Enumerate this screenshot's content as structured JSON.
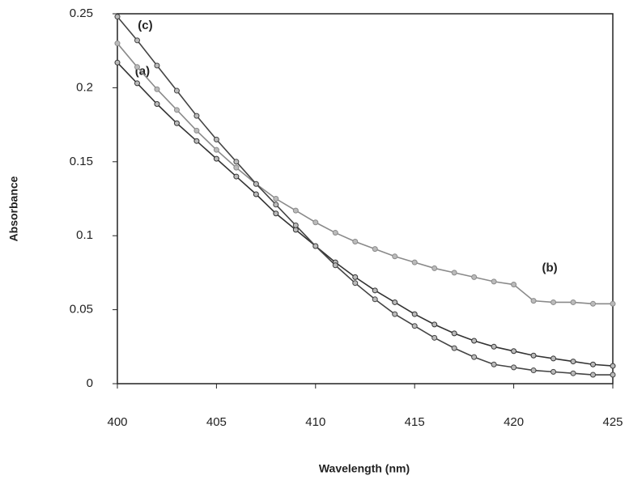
{
  "chart_data": {
    "type": "line",
    "x_label": "Wavelength (nm)",
    "y_label": "Absorbance",
    "x": [
      400,
      401,
      402,
      403,
      404,
      405,
      406,
      407,
      408,
      409,
      410,
      411,
      412,
      413,
      414,
      415,
      416,
      417,
      418,
      419,
      420,
      421,
      422,
      423,
      424,
      425
    ],
    "series": [
      {
        "name": "(a)",
        "color": "#333333",
        "values": [
          0.217,
          0.203,
          0.189,
          0.176,
          0.164,
          0.152,
          0.14,
          0.128,
          0.115,
          0.104,
          0.093,
          0.082,
          0.072,
          0.063,
          0.055,
          0.047,
          0.04,
          0.034,
          0.029,
          0.025,
          0.022,
          0.019,
          0.017,
          0.015,
          0.013,
          0.012
        ]
      },
      {
        "name": "(b)",
        "color": "#8a8a8a",
        "values": [
          0.23,
          0.214,
          0.199,
          0.185,
          0.171,
          0.158,
          0.146,
          0.135,
          0.125,
          0.117,
          0.109,
          0.102,
          0.096,
          0.091,
          0.086,
          0.082,
          0.078,
          0.075,
          0.072,
          0.069,
          0.067,
          0.056,
          0.055,
          0.055,
          0.054,
          0.054
        ]
      },
      {
        "name": "(c)",
        "color": "#444444",
        "values": [
          0.248,
          0.232,
          0.215,
          0.198,
          0.181,
          0.165,
          0.15,
          0.135,
          0.121,
          0.107,
          0.093,
          0.08,
          0.068,
          0.057,
          0.047,
          0.039,
          0.031,
          0.024,
          0.018,
          0.013,
          0.011,
          0.009,
          0.008,
          0.007,
          0.006,
          0.006
        ]
      }
    ],
    "xlim": [
      400,
      425
    ],
    "xticks": [
      400,
      405,
      410,
      415,
      420,
      425
    ],
    "ylim": [
      0,
      0.25
    ],
    "yticks": [
      0,
      0.05,
      0.1,
      0.15,
      0.2,
      0.25
    ],
    "grid": false
  }
}
